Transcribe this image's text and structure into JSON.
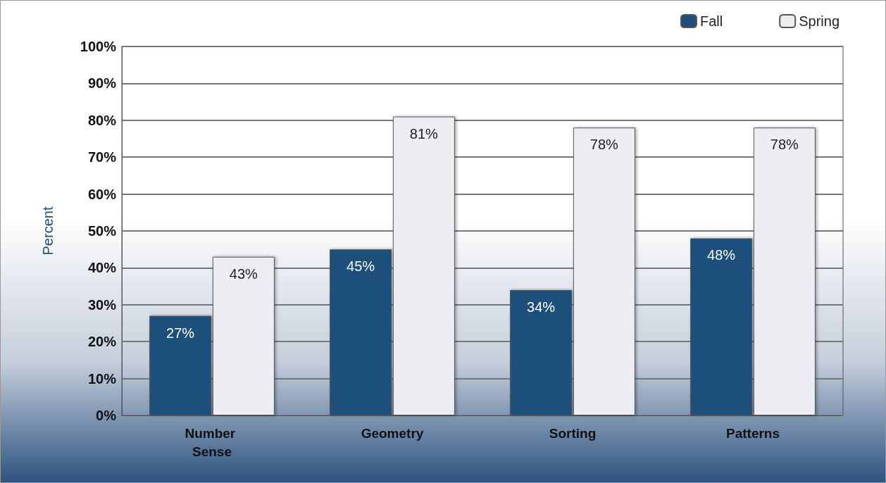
{
  "chart_data": {
    "type": "bar",
    "ylabel": "Percent",
    "categories": [
      "Number Sense",
      "Geometry",
      "Sorting",
      "Patterns"
    ],
    "series": [
      {
        "name": "Fall",
        "color": "#1d4f7c",
        "values": [
          27,
          45,
          34,
          48
        ],
        "value_labels": [
          "27%",
          "45%",
          "34%",
          "48%"
        ]
      },
      {
        "name": "Spring",
        "color": "#eceef3",
        "values": [
          43,
          81,
          78,
          78
        ],
        "value_labels": [
          "43%",
          "81%",
          "78%",
          "78%"
        ]
      }
    ],
    "ylim": [
      0,
      100
    ],
    "yticks": [
      {
        "value": 0,
        "label": "0%"
      },
      {
        "value": 10,
        "label": "10%"
      },
      {
        "value": 20,
        "label": "20%"
      },
      {
        "value": 30,
        "label": "30%"
      },
      {
        "value": 40,
        "label": "40%"
      },
      {
        "value": 50,
        "label": "50%"
      },
      {
        "value": 60,
        "label": "60%"
      },
      {
        "value": 70,
        "label": "70%"
      },
      {
        "value": 80,
        "label": "80%"
      },
      {
        "value": 90,
        "label": "90%"
      },
      {
        "value": 100,
        "label": "100%"
      }
    ],
    "grid": "y",
    "legend": "top right"
  }
}
